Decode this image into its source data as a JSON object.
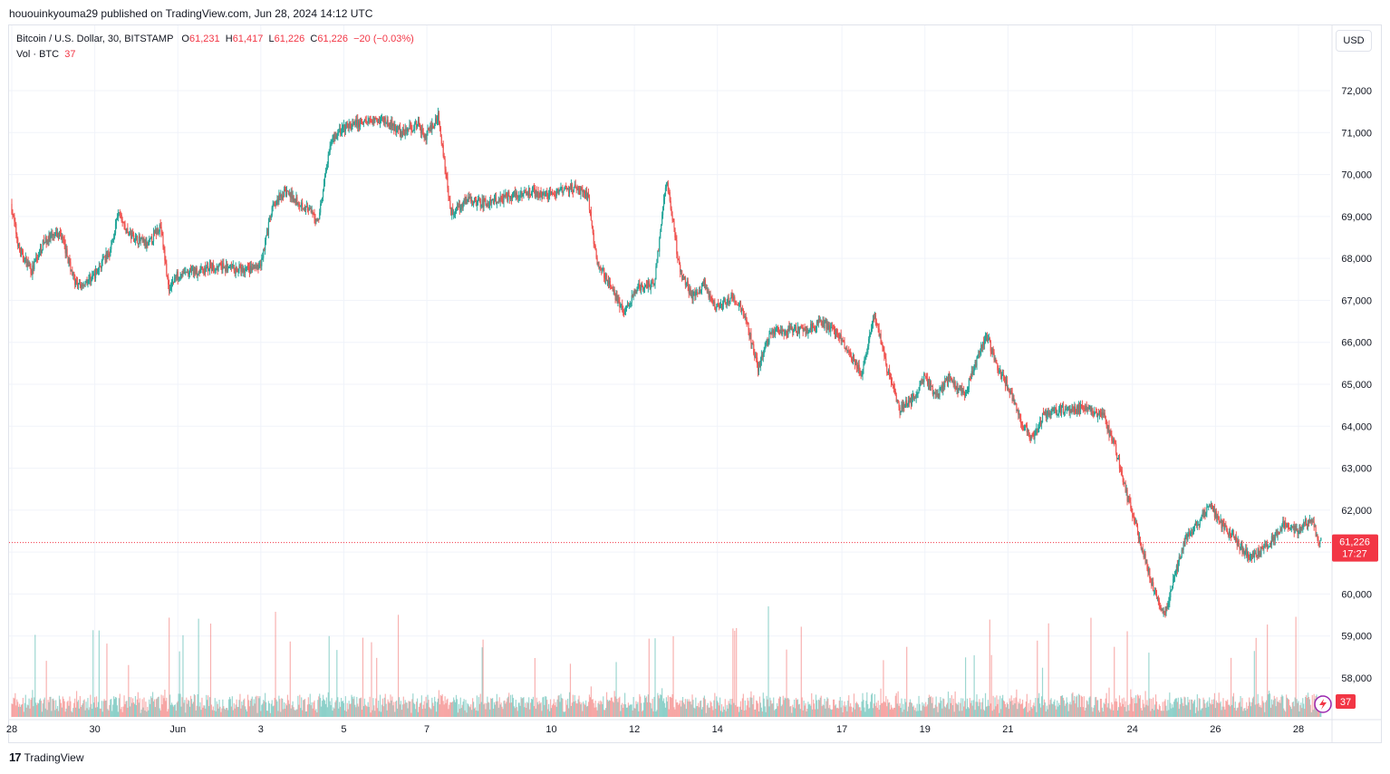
{
  "header": {
    "published_line": "hououinkyouma29 published on TradingView.com, Jun 28, 2024 14:12 UTC"
  },
  "legend": {
    "symbol": "Bitcoin / U.S. Dollar, 30, BITSTAMP",
    "open_label": "O",
    "open": "61,231",
    "high_label": "H",
    "high": "61,417",
    "low_label": "L",
    "low": "61,226",
    "close_label": "C",
    "close": "61,226",
    "change": "−20 (−0.03%)",
    "volume_label": "Vol · BTC",
    "volume": "37"
  },
  "currency_button": "USD",
  "price_tag": {
    "price": "61,226",
    "countdown": "17:27"
  },
  "volume_tag": "37",
  "footer": {
    "brand": "TradingView",
    "logo_mark": "17"
  },
  "colors": {
    "up": "#26a69a",
    "down": "#ef5350",
    "last_price": "#f23645",
    "grid": "#f0f3fa",
    "text": "#131722"
  },
  "chart_data": {
    "type": "candlestick",
    "symbol": "BTCUSD",
    "interval": "30",
    "exchange": "BITSTAMP",
    "y_ticks": [
      58000,
      59000,
      60000,
      61000,
      62000,
      63000,
      64000,
      65000,
      66000,
      67000,
      68000,
      69000,
      70000,
      71000,
      72000
    ],
    "y_tick_labels": [
      "58,000",
      "59,000",
      "60,000",
      "",
      "62,000",
      "63,000",
      "64,000",
      "65,000",
      "66,000",
      "67,000",
      "68,000",
      "69,000",
      "70,000",
      "71,000",
      "72,000"
    ],
    "ylim": [
      57300,
      73000
    ],
    "x_ticks": [
      "28",
      "30",
      "Jun",
      "3",
      "5",
      "7",
      "10",
      "12",
      "14",
      "17",
      "19",
      "21",
      "24",
      "26",
      "28"
    ],
    "x_tick_days": [
      -3,
      -1,
      1,
      3,
      5,
      7,
      10,
      12,
      14,
      17,
      19,
      21,
      24,
      26,
      28
    ],
    "x_range_days": [
      -3,
      28.6
    ],
    "last_price": 61226,
    "price_path": [
      [
        -3.0,
        69300
      ],
      [
        -2.8,
        68200
      ],
      [
        -2.5,
        67700
      ],
      [
        -2.2,
        68400
      ],
      [
        -1.8,
        68600
      ],
      [
        -1.6,
        67900
      ],
      [
        -1.4,
        67300
      ],
      [
        -1.0,
        67600
      ],
      [
        -0.6,
        68200
      ],
      [
        -0.4,
        69100
      ],
      [
        -0.2,
        68600
      ],
      [
        0.3,
        68300
      ],
      [
        0.6,
        68800
      ],
      [
        0.8,
        67300
      ],
      [
        1.0,
        67600
      ],
      [
        1.5,
        67700
      ],
      [
        2.0,
        67800
      ],
      [
        2.6,
        67700
      ],
      [
        3.0,
        67800
      ],
      [
        3.3,
        69200
      ],
      [
        3.6,
        69600
      ],
      [
        4.0,
        69300
      ],
      [
        4.4,
        68900
      ],
      [
        4.7,
        70800
      ],
      [
        5.0,
        71100
      ],
      [
        5.3,
        71200
      ],
      [
        5.7,
        71300
      ],
      [
        6.0,
        71300
      ],
      [
        6.4,
        71000
      ],
      [
        6.8,
        71200
      ],
      [
        7.0,
        70900
      ],
      [
        7.3,
        71400
      ],
      [
        7.6,
        69100
      ],
      [
        8.0,
        69400
      ],
      [
        8.5,
        69300
      ],
      [
        9.0,
        69500
      ],
      [
        9.5,
        69600
      ],
      [
        10.0,
        69500
      ],
      [
        10.5,
        69700
      ],
      [
        10.9,
        69500
      ],
      [
        11.1,
        68000
      ],
      [
        11.5,
        67200
      ],
      [
        11.8,
        66700
      ],
      [
        12.1,
        67300
      ],
      [
        12.5,
        67400
      ],
      [
        12.8,
        69900
      ],
      [
        13.1,
        67800
      ],
      [
        13.4,
        67100
      ],
      [
        13.7,
        67400
      ],
      [
        14.0,
        66800
      ],
      [
        14.4,
        67100
      ],
      [
        14.7,
        66600
      ],
      [
        15.0,
        65400
      ],
      [
        15.3,
        66200
      ],
      [
        15.8,
        66300
      ],
      [
        16.2,
        66300
      ],
      [
        16.5,
        66500
      ],
      [
        16.9,
        66200
      ],
      [
        17.2,
        65800
      ],
      [
        17.5,
        65200
      ],
      [
        17.8,
        66700
      ],
      [
        18.1,
        65400
      ],
      [
        18.4,
        64400
      ],
      [
        18.8,
        64700
      ],
      [
        19.0,
        65200
      ],
      [
        19.3,
        64700
      ],
      [
        19.6,
        65200
      ],
      [
        19.8,
        64900
      ],
      [
        20.0,
        64800
      ],
      [
        20.3,
        65700
      ],
      [
        20.5,
        66200
      ],
      [
        20.8,
        65300
      ],
      [
        21.0,
        65000
      ],
      [
        21.3,
        64200
      ],
      [
        21.6,
        63700
      ],
      [
        21.9,
        64300
      ],
      [
        22.3,
        64400
      ],
      [
        22.8,
        64400
      ],
      [
        23.3,
        64300
      ],
      [
        23.6,
        63500
      ],
      [
        23.9,
        62300
      ],
      [
        24.2,
        61300
      ],
      [
        24.5,
        60200
      ],
      [
        24.8,
        59500
      ],
      [
        25.0,
        60300
      ],
      [
        25.3,
        61300
      ],
      [
        25.6,
        61700
      ],
      [
        25.9,
        62100
      ],
      [
        26.2,
        61600
      ],
      [
        26.5,
        61300
      ],
      [
        26.8,
        60900
      ],
      [
        27.1,
        61000
      ],
      [
        27.4,
        61300
      ],
      [
        27.7,
        61700
      ],
      [
        28.0,
        61500
      ],
      [
        28.3,
        61800
      ],
      [
        28.55,
        61226
      ]
    ],
    "grid": true,
    "volume_series": "Vol · BTC"
  }
}
